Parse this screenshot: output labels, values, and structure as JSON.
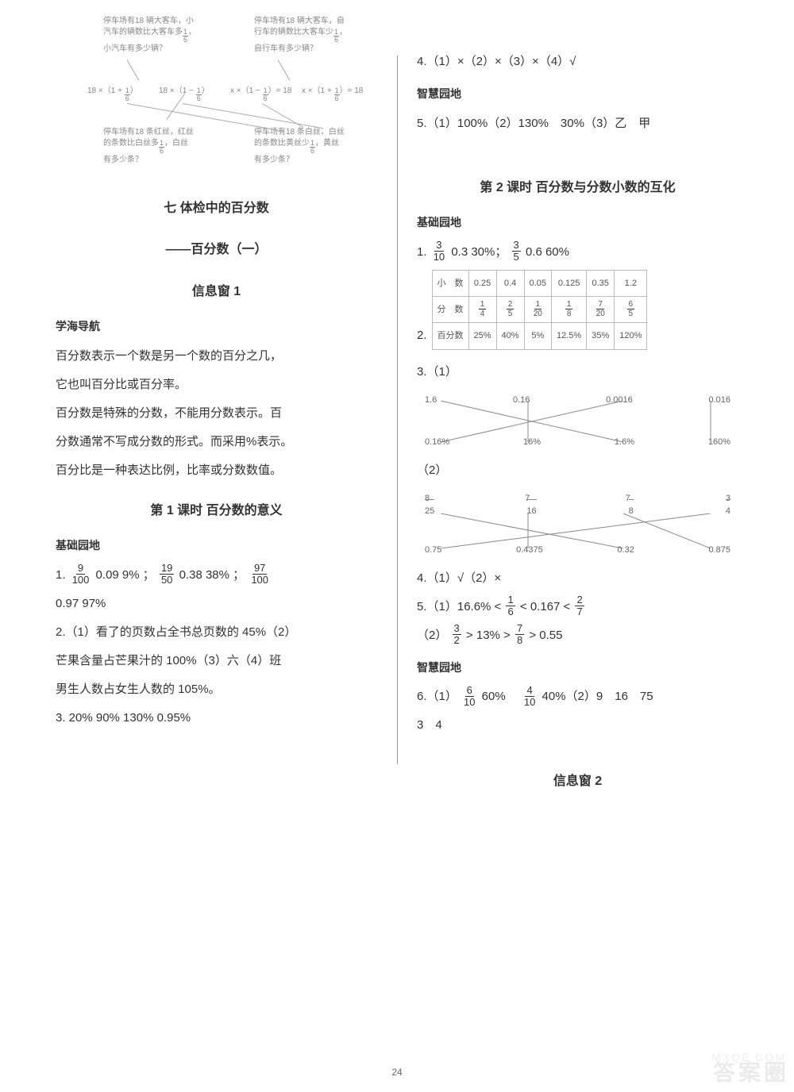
{
  "pageNumber": "24",
  "watermark_main": "答案圈",
  "watermark_sub": "MXQE.COM",
  "left": {
    "diagram": {
      "box1": "停车场有18 辆大客车，小汽车的辆数比大客车多 1/6，小汽车有多少辆？",
      "box2": "停车场有18 辆大客车，自行车的辆数比大客车少 1/6，自行车有多少辆？",
      "expr1": "18 ×（1 + 1/6）",
      "expr2": "18 ×（1 − 1/6）",
      "expr3": "×（1 − 1/6）= 18",
      "expr4": "×（1 + 1/6）= 18",
      "box3": "停车场有18 条红丝，红丝的条数比白丝多 1/6，白丝有多少条？",
      "box4": "停车场有18 条白丝，白丝的条数比黄丝少 1/6，黄丝有多少条？"
    },
    "title_ch": "七 体检中的百分数",
    "title_sub": "——百分数（一）",
    "info_window": "信息窗 1",
    "nav_heading": "学海导航",
    "nav_p1": "百分数表示一个数是另一个数的百分之几，",
    "nav_p2": "它也叫百分比或百分率。",
    "nav_p3": "百分数是特殊的分数，不能用分数表示。百",
    "nav_p4": "分数通常不写成分数的形式。而采用%表示。",
    "nav_p5": "百分比是一种表达比例，比率或分数数值。",
    "lesson1_title": "第 1 课时 百分数的意义",
    "base_heading": "基础园地",
    "q1_frac1": {
      "n": "9",
      "d": "100"
    },
    "q1_t1": " 0.09  9%  ；",
    "q1_frac2": {
      "n": "19",
      "d": "50"
    },
    "q1_t2": " 0.38 38%  ；",
    "q1_frac3": {
      "n": "97",
      "d": "100"
    },
    "q1_line2": "0.97 97%",
    "q2_line1": "2.（1）看了的页数占全书总页数的 45%（2）",
    "q2_line2": "芒果含量占芒果汁的 100%（3）六（4）班",
    "q2_line3": "男生人数占女生人数的 105%。",
    "q3": "3. 20%  90%  130%  0.95%"
  },
  "right": {
    "q4": "4.（1）×（2）×（3）×（4）√",
    "wisdom_heading": "智慧园地",
    "q5": "5.（1）100%（2）130%　30%（3）乙　甲",
    "lesson2_title": "第 2 课时 百分数与分数小数的互化",
    "base_heading": "基础园地",
    "q1_prefix": "1. ",
    "q1_f1": {
      "n": "3",
      "d": "10"
    },
    "q1_t1": " 0.3  30%；",
    "q1_f2": {
      "n": "3",
      "d": "5"
    },
    "q1_t2": " 0.6 60%",
    "q2_label": "2.",
    "table": {
      "r_dec": [
        "小　数",
        "0.25",
        "0.4",
        "0.05",
        "0.125",
        "0.35",
        "1.2"
      ],
      "r_frac_label": "分　数",
      "r_frac": [
        {
          "n": "1",
          "d": "4"
        },
        {
          "n": "2",
          "d": "5"
        },
        {
          "n": "1",
          "d": "20"
        },
        {
          "n": "1",
          "d": "8"
        },
        {
          "n": "7",
          "d": "20"
        },
        {
          "n": "6",
          "d": "5"
        }
      ],
      "r_pct": [
        "百分数",
        "25%",
        "40%",
        "5%",
        "12.5%",
        "35%",
        "120%"
      ]
    },
    "q3_label": "3.（1）",
    "match1": {
      "top": [
        "1.6",
        "0.16",
        "0.0016",
        "0.016"
      ],
      "bot": [
        "0.16%",
        "16%",
        "1.6%",
        "160%"
      ],
      "lines": [
        [
          0,
          2
        ],
        [
          1,
          1
        ],
        [
          2,
          0
        ],
        [
          3,
          3
        ]
      ]
    },
    "q3_2": "（2）",
    "match2": {
      "top1": [
        "8",
        "7",
        "7",
        "3"
      ],
      "top2": [
        "25",
        "16",
        "8",
        "4"
      ],
      "bot": [
        "0.75",
        "0.4375",
        "0.32",
        "0.875"
      ],
      "lines": [
        [
          0,
          2
        ],
        [
          1,
          1
        ],
        [
          2,
          3
        ],
        [
          3,
          0
        ]
      ]
    },
    "q4r": "4.（1）√（2）×",
    "q5r_prefix": "5.（1）16.6% < ",
    "q5r_f1": {
      "n": "1",
      "d": "6"
    },
    "q5r_mid": " < 0.167 < ",
    "q5r_f2": {
      "n": "2",
      "d": "7"
    },
    "q5r_l2a": "（2）",
    "q5r_f3": {
      "n": "3",
      "d": "2"
    },
    "q5r_l2b": " > 13% > ",
    "q5r_f4": {
      "n": "7",
      "d": "8"
    },
    "q5r_l2c": " > 0.55",
    "wisdom_heading2": "智慧园地",
    "q6a": "6.（1）",
    "q6f1": {
      "n": "6",
      "d": "10"
    },
    "q6b": " 60%　",
    "q6f2": {
      "n": "4",
      "d": "10"
    },
    "q6c": " 40%（2）9　16　75",
    "q6_line2": "3　4",
    "info_window2": "信息窗 2"
  }
}
